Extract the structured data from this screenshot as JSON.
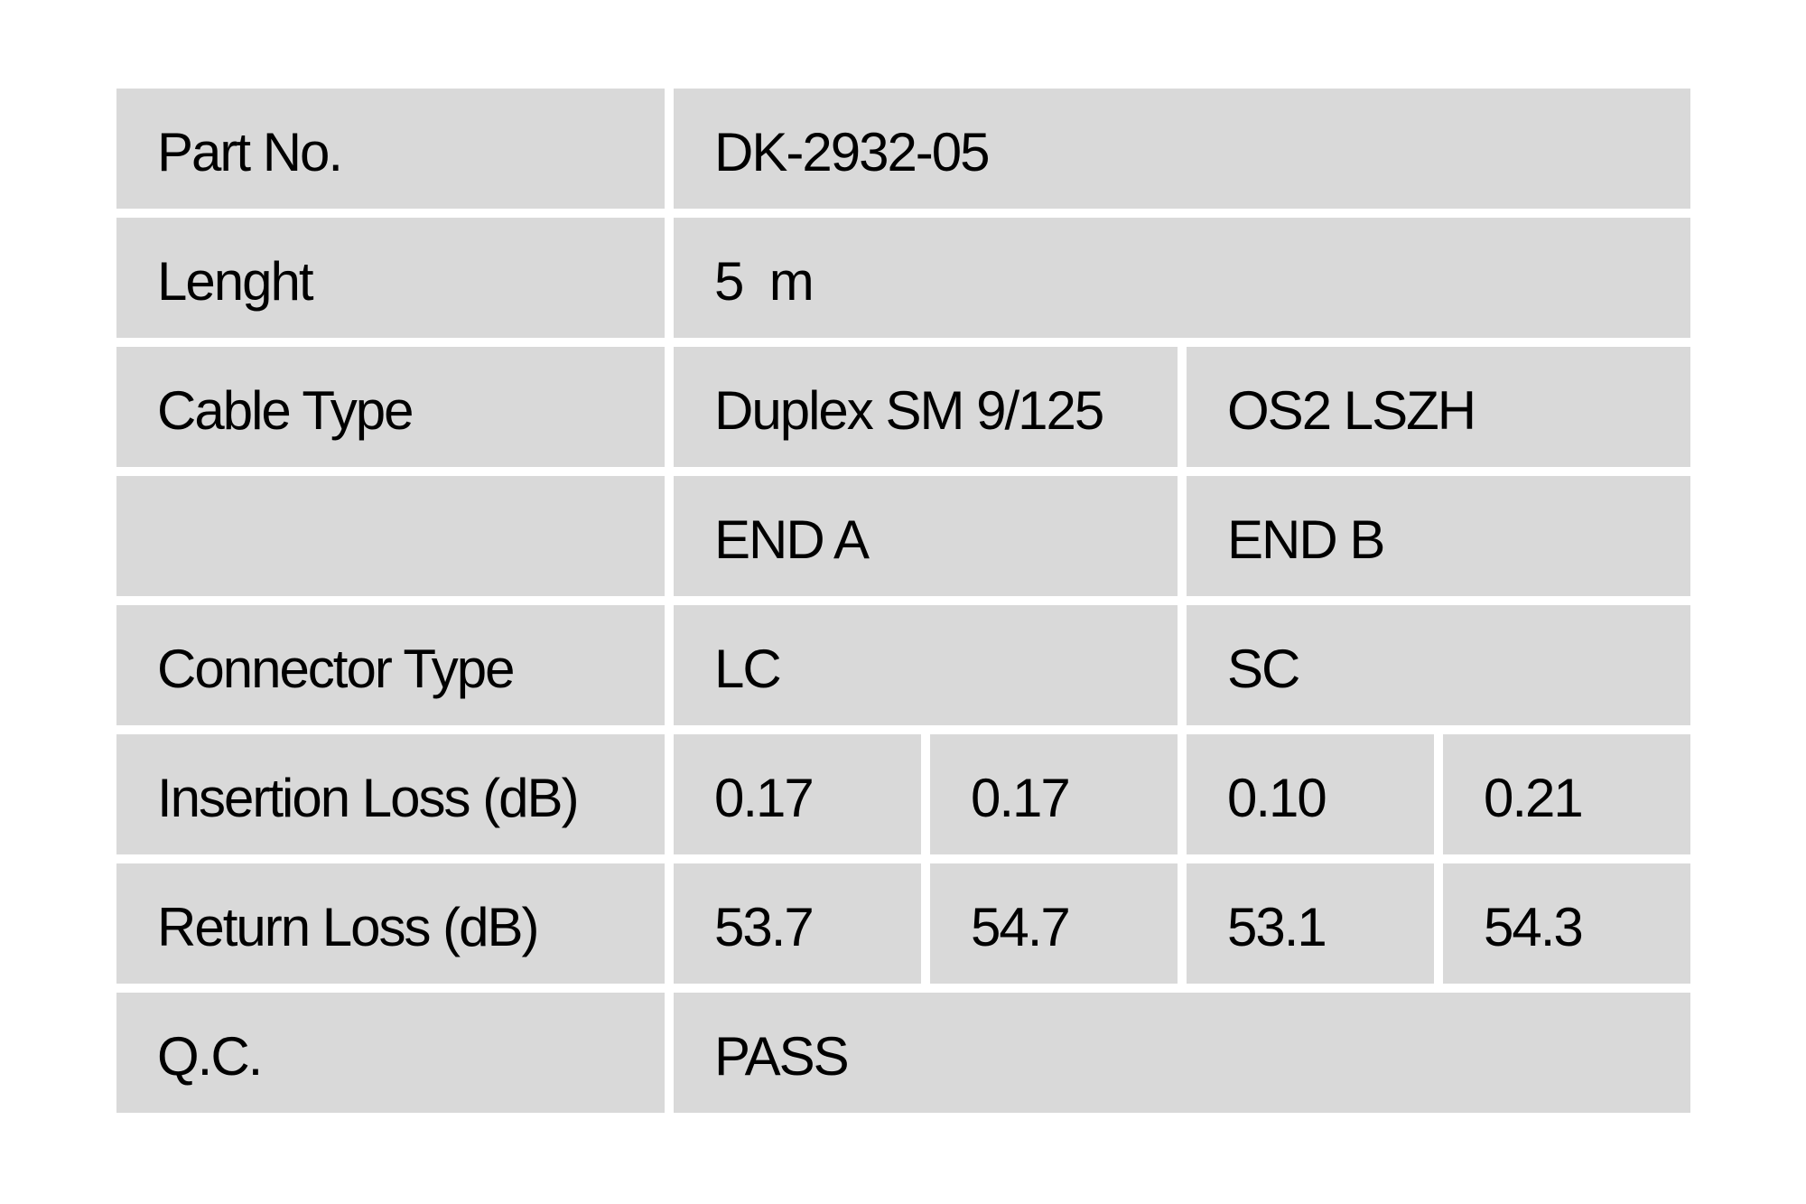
{
  "page": {
    "background_color": "#ffffff",
    "cell_background_color": "#d9d9d9",
    "text_color": "#000000"
  },
  "table": {
    "rows": [
      {
        "label": "Part No.",
        "values": [
          "DK-2932-05"
        ]
      },
      {
        "label": "Lenght",
        "values": [
          "5  m"
        ]
      },
      {
        "label": "Cable Type",
        "values": [
          "Duplex SM 9/125",
          "OS2 LSZH"
        ]
      },
      {
        "label": "",
        "values": [
          "END A",
          "END B"
        ]
      },
      {
        "label": "Connector Type",
        "values": [
          "LC",
          "SC"
        ]
      },
      {
        "label": "Insertion Loss (dB)",
        "values": [
          "0.17",
          "0.17",
          "0.10",
          "0.21"
        ]
      },
      {
        "label": "Return Loss (dB)",
        "values": [
          "53.7",
          "54.7",
          "53.1",
          "54.3"
        ]
      },
      {
        "label": "Q.C.",
        "values": [
          "PASS"
        ]
      }
    ]
  }
}
